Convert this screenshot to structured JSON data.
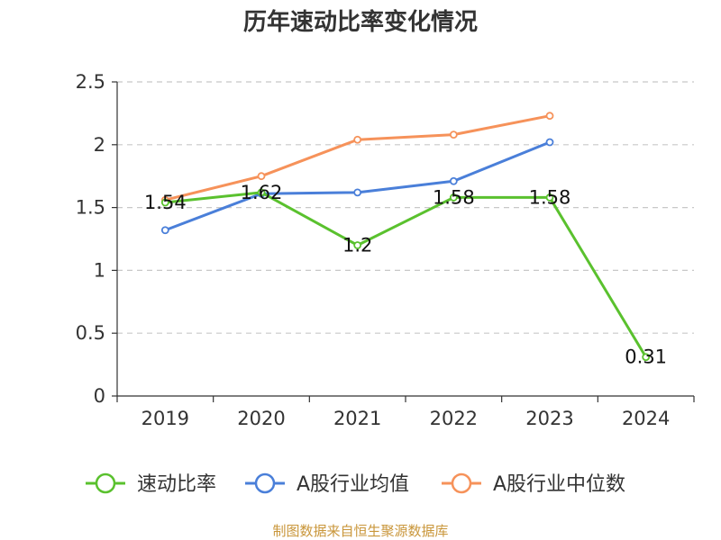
{
  "chart_data": {
    "type": "line",
    "title": "历年速动比率变化情况",
    "xlabel": "",
    "ylabel": "",
    "categories": [
      "2019",
      "2020",
      "2021",
      "2022",
      "2023",
      "2024"
    ],
    "ylim": [
      0,
      2.5
    ],
    "yticks": [
      "0",
      "0.5",
      "1",
      "1.5",
      "2",
      "2.5"
    ],
    "ytick_values": [
      0,
      0.5,
      1,
      1.5,
      2,
      2.5
    ],
    "grid": true,
    "legend_position": "bottom",
    "series": [
      {
        "name": "速动比率",
        "color": "#5ac12e",
        "values": [
          1.54,
          1.62,
          1.2,
          1.58,
          1.58,
          0.31
        ],
        "labels": [
          "1.54",
          "1.62",
          "1.2",
          "1.58",
          "1.58",
          "0.31"
        ]
      },
      {
        "name": "A股行业均值",
        "color": "#4a7fd9",
        "values": [
          1.32,
          1.61,
          1.62,
          1.71,
          2.02,
          null
        ]
      },
      {
        "name": "A股行业中位数",
        "color": "#f6925a",
        "values": [
          1.56,
          1.75,
          2.04,
          2.08,
          2.23,
          null
        ]
      }
    ]
  },
  "footer": {
    "source": "制图数据来自恒生聚源数据库"
  }
}
